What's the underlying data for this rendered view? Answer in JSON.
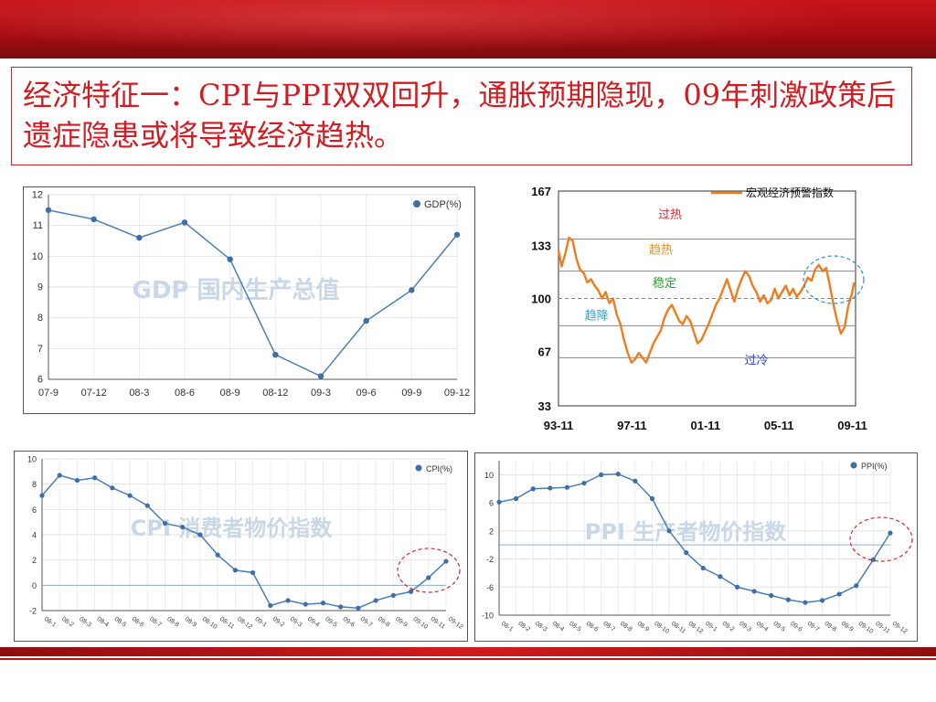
{
  "slide": {
    "title": "经济特征一：CPI与PPI双双回升，通胀预期隐现，09年刺激政策后遗症隐患或将导致经济趋热。"
  },
  "colors": {
    "banner": "#b3101a",
    "title_text": "#d11c22",
    "series_blue": "#4a7fb5",
    "series_orange": "#f07c1f",
    "annotation_red": "#d6262c",
    "annotation_blue": "#2d8fd6"
  },
  "chart_data": [
    {
      "id": "gdp",
      "type": "line",
      "watermark": "GDP 国内生产总值",
      "categories": [
        "07-9",
        "07-12",
        "08-3",
        "08-6",
        "08-9",
        "08-12",
        "09-3",
        "09-6",
        "09-9",
        "09-12"
      ],
      "series": [
        {
          "name": "GDP(%)",
          "values": [
            11.5,
            11.2,
            10.6,
            11.1,
            9.9,
            6.8,
            6.1,
            7.9,
            8.9,
            10.7
          ]
        }
      ],
      "yticks": [
        6,
        7,
        8,
        9,
        10,
        11,
        12
      ],
      "ylim": [
        6,
        12
      ],
      "grid": true,
      "legend": "top-right"
    },
    {
      "id": "warning",
      "type": "line",
      "series": [
        {
          "name": "宏观经济预警指数"
        }
      ],
      "x_range": [
        1993.83,
        2010.0
      ],
      "x_ticks": [
        {
          "x": 1993.83,
          "label": "93-11"
        },
        {
          "x": 1997.83,
          "label": "97-11"
        },
        {
          "x": 2001.83,
          "label": "01-11"
        },
        {
          "x": 2005.83,
          "label": "05-11"
        },
        {
          "x": 2009.83,
          "label": "09-11"
        }
      ],
      "yticks": [
        33,
        67,
        100,
        133,
        167
      ],
      "ylim": [
        33,
        167
      ],
      "zone_lines": [
        {
          "y": 137,
          "style": "solid"
        },
        {
          "y": 117,
          "style": "solid"
        },
        {
          "y": 100,
          "style": "dashed"
        },
        {
          "y": 83,
          "style": "solid"
        },
        {
          "y": 63,
          "style": "solid"
        }
      ],
      "zones": [
        {
          "label": "过热",
          "x": 1999.9,
          "y": 150,
          "color": "#e3262c"
        },
        {
          "label": "趋热",
          "x": 1999.4,
          "y": 128,
          "color": "#f08a1e"
        },
        {
          "label": "稳定",
          "x": 1999.6,
          "y": 107,
          "color": "#2e9a3a"
        },
        {
          "label": "趋降",
          "x": 1995.9,
          "y": 87,
          "color": "#22a7d8"
        },
        {
          "label": "过冷",
          "x": 2004.6,
          "y": 59,
          "color": "#2b45c8"
        }
      ],
      "points": [
        [
          1993.83,
          130
        ],
        [
          1994.0,
          120
        ],
        [
          1994.2,
          128
        ],
        [
          1994.4,
          138
        ],
        [
          1994.6,
          136
        ],
        [
          1994.8,
          125
        ],
        [
          1995.0,
          118
        ],
        [
          1995.2,
          116
        ],
        [
          1995.4,
          110
        ],
        [
          1995.6,
          112
        ],
        [
          1995.8,
          108
        ],
        [
          1996.0,
          105
        ],
        [
          1996.2,
          100
        ],
        [
          1996.4,
          104
        ],
        [
          1996.6,
          97
        ],
        [
          1996.8,
          100
        ],
        [
          1997.0,
          90
        ],
        [
          1997.2,
          84
        ],
        [
          1997.4,
          74
        ],
        [
          1997.6,
          66
        ],
        [
          1997.8,
          60
        ],
        [
          1998.0,
          62
        ],
        [
          1998.2,
          66
        ],
        [
          1998.4,
          63
        ],
        [
          1998.6,
          60
        ],
        [
          1998.8,
          66
        ],
        [
          1999.0,
          72
        ],
        [
          1999.2,
          76
        ],
        [
          1999.4,
          80
        ],
        [
          1999.6,
          88
        ],
        [
          1999.8,
          93
        ],
        [
          2000.0,
          96
        ],
        [
          2000.2,
          91
        ],
        [
          2000.4,
          86
        ],
        [
          2000.6,
          84
        ],
        [
          2000.8,
          89
        ],
        [
          2001.0,
          86
        ],
        [
          2001.2,
          79
        ],
        [
          2001.4,
          72
        ],
        [
          2001.6,
          74
        ],
        [
          2001.8,
          79
        ],
        [
          2002.0,
          84
        ],
        [
          2002.2,
          90
        ],
        [
          2002.4,
          96
        ],
        [
          2002.6,
          100
        ],
        [
          2002.8,
          106
        ],
        [
          2003.0,
          112
        ],
        [
          2003.2,
          105
        ],
        [
          2003.4,
          98
        ],
        [
          2003.6,
          106
        ],
        [
          2003.8,
          112
        ],
        [
          2004.0,
          117
        ],
        [
          2004.2,
          114
        ],
        [
          2004.4,
          108
        ],
        [
          2004.6,
          104
        ],
        [
          2004.8,
          98
        ],
        [
          2005.0,
          102
        ],
        [
          2005.2,
          97
        ],
        [
          2005.4,
          99
        ],
        [
          2005.6,
          106
        ],
        [
          2005.8,
          100
        ],
        [
          2006.0,
          104
        ],
        [
          2006.2,
          108
        ],
        [
          2006.4,
          102
        ],
        [
          2006.6,
          106
        ],
        [
          2006.8,
          101
        ],
        [
          2007.0,
          104
        ],
        [
          2007.2,
          108
        ],
        [
          2007.4,
          113
        ],
        [
          2007.6,
          111
        ],
        [
          2007.8,
          118
        ],
        [
          2008.0,
          121
        ],
        [
          2008.2,
          117
        ],
        [
          2008.4,
          119
        ],
        [
          2008.6,
          108
        ],
        [
          2008.8,
          96
        ],
        [
          2009.0,
          86
        ],
        [
          2009.2,
          78
        ],
        [
          2009.4,
          82
        ],
        [
          2009.6,
          95
        ],
        [
          2009.8,
          103
        ],
        [
          2009.92,
          110
        ]
      ],
      "legend": "top-right",
      "grid": false
    },
    {
      "id": "cpi",
      "type": "line",
      "watermark": "CPI 消费者物价指数",
      "categories": [
        "08-1",
        "08-2",
        "08-3",
        "08-4",
        "08-5",
        "08-6",
        "08-7",
        "08-8",
        "08-9",
        "08-10",
        "08-11",
        "08-12",
        "09-1",
        "09-2",
        "09-3",
        "09-4",
        "09-5",
        "09-6",
        "09-7",
        "09-8",
        "09-9",
        "09-10",
        "09-11",
        "09-12"
      ],
      "series": [
        {
          "name": "CPI(%)",
          "values": [
            7.1,
            8.7,
            8.3,
            8.5,
            7.7,
            7.1,
            6.3,
            4.9,
            4.6,
            4.0,
            2.4,
            1.2,
            1.0,
            -1.6,
            -1.2,
            -1.5,
            -1.4,
            -1.7,
            -1.8,
            -1.2,
            -0.8,
            -0.5,
            0.6,
            1.9
          ]
        }
      ],
      "yticks": [
        -2,
        0,
        2,
        4,
        6,
        8,
        10
      ],
      "ylim": [
        -2,
        10
      ],
      "grid": true,
      "legend": "top-right"
    },
    {
      "id": "ppi",
      "type": "line",
      "watermark": "PPI 生产者物价指数",
      "categories": [
        "08-1",
        "08-2",
        "08-3",
        "08-4",
        "08-5",
        "08-6",
        "08-7",
        "08-8",
        "08-9",
        "08-10",
        "08-11",
        "08-12",
        "09-1",
        "09-2",
        "09-3",
        "09-4",
        "09-5",
        "09-6",
        "09-7",
        "09-8",
        "09-9",
        "09-10",
        "09-11",
        "09-12"
      ],
      "series": [
        {
          "name": "PPI(%)",
          "values": [
            6.1,
            6.6,
            8.0,
            8.1,
            8.2,
            8.8,
            10.0,
            10.1,
            9.1,
            6.6,
            2.0,
            -1.1,
            -3.3,
            -4.5,
            -6.0,
            -6.6,
            -7.2,
            -7.8,
            -8.2,
            -7.9,
            -7.0,
            -5.8,
            -2.1,
            1.7
          ]
        }
      ],
      "yticks": [
        -10,
        -6,
        -2,
        2,
        6,
        10
      ],
      "ylim": [
        -10,
        12
      ],
      "grid": true,
      "legend": "top-right"
    }
  ]
}
